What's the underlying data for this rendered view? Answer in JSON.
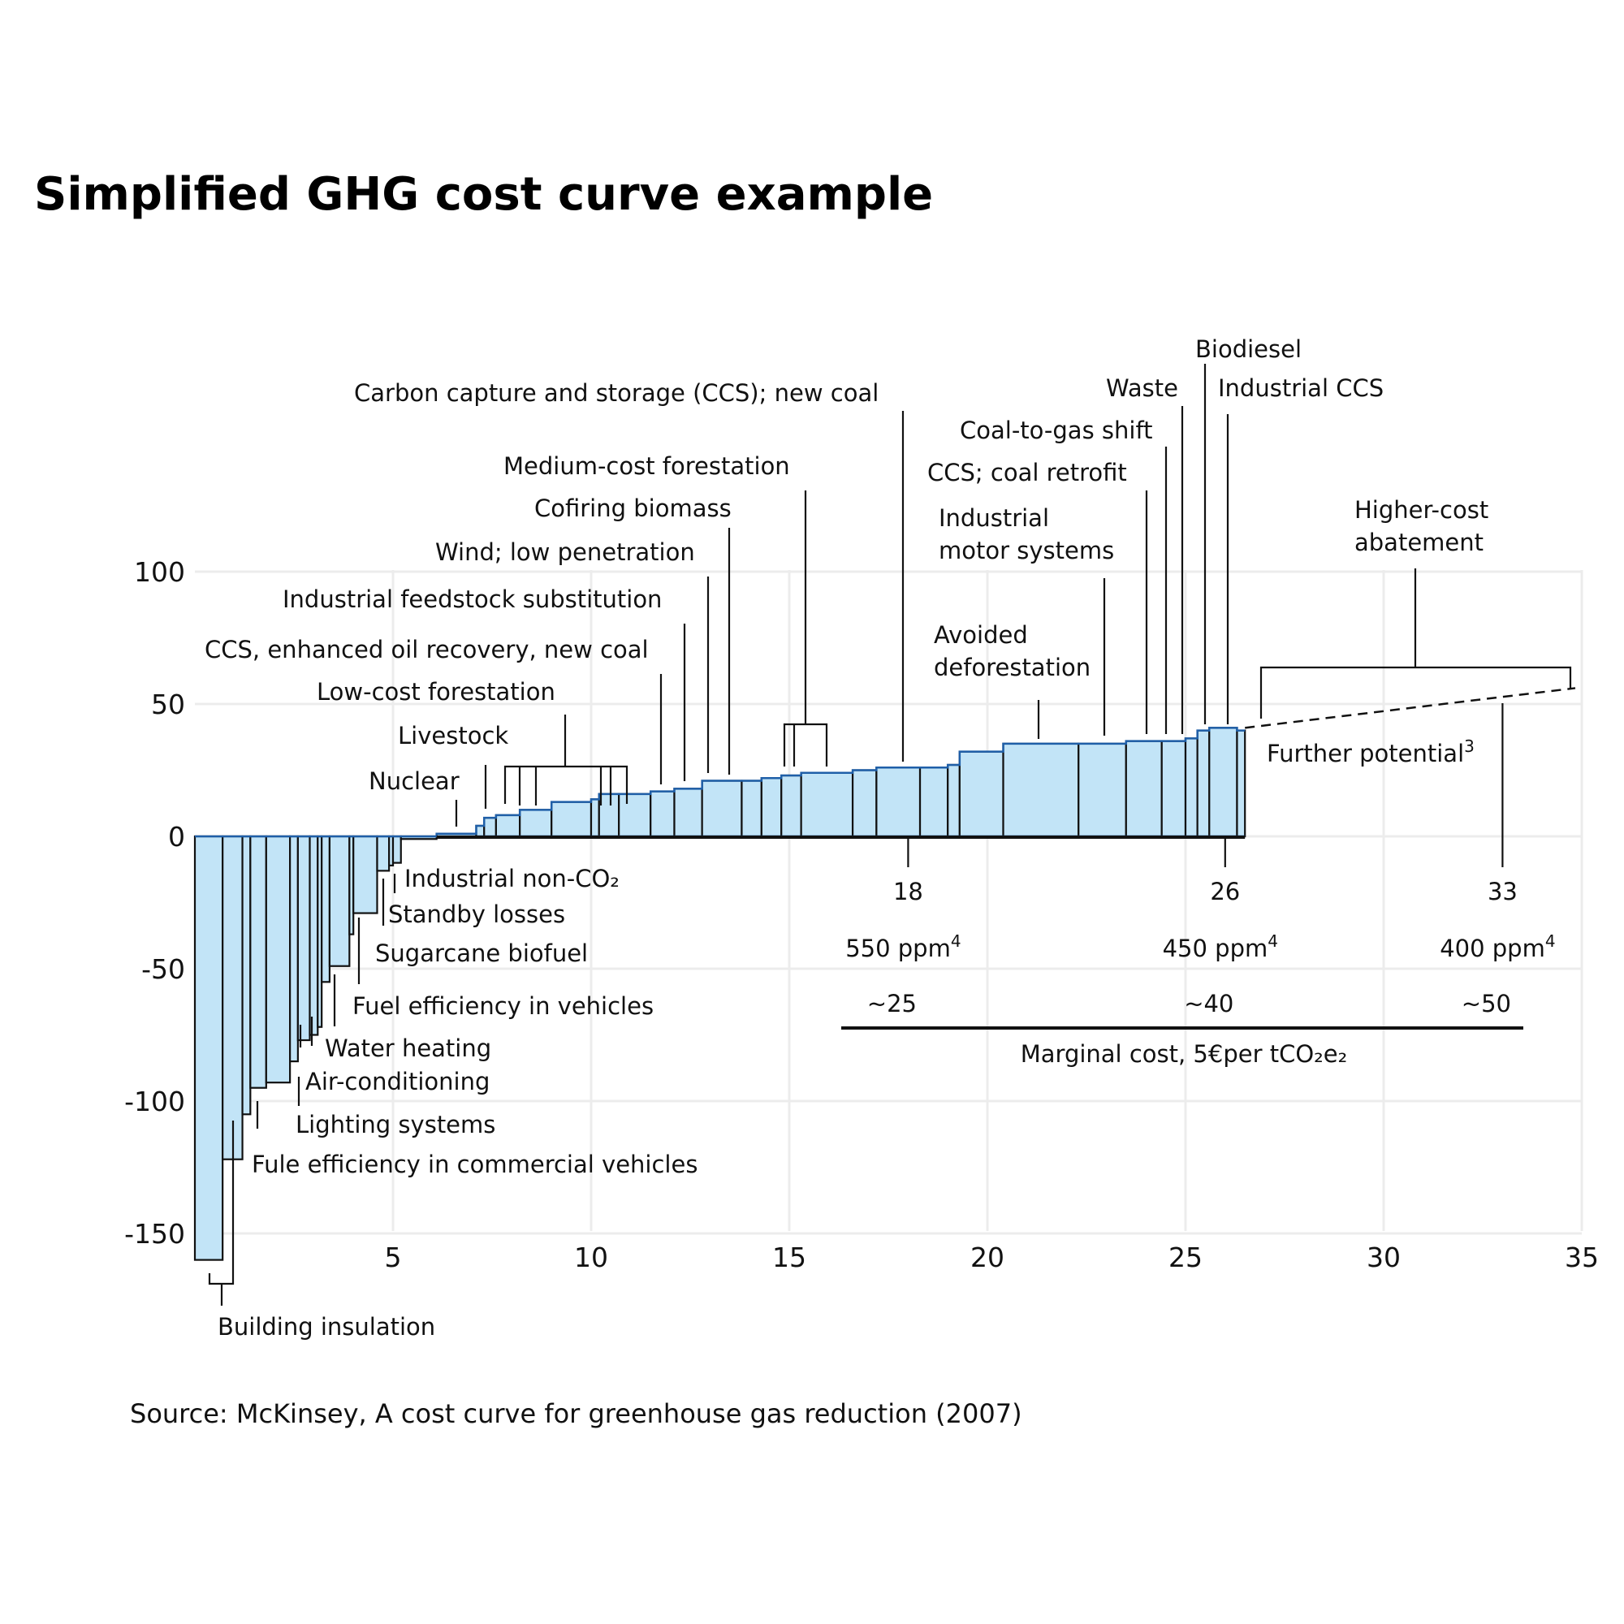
{
  "page": {
    "title": "Simplified GHG cost curve example",
    "source": "Source: McKinsey, A cost curve for greenhouse gas reduction (2007)"
  },
  "chart_data": {
    "type": "bar",
    "title": "Simplified GHG cost curve example",
    "xlim": [
      0,
      35
    ],
    "ylim": [
      -165,
      110
    ],
    "x_ticks": [
      5,
      10,
      15,
      20,
      25,
      30,
      35
    ],
    "y_ticks": [
      100,
      50,
      0,
      -50,
      -100,
      -150
    ],
    "grid": true,
    "bars": [
      {
        "x0": 0.0,
        "x1": 0.7,
        "value": -160
      },
      {
        "x0": 0.7,
        "x1": 1.2,
        "value": -122
      },
      {
        "x0": 1.2,
        "x1": 1.4,
        "value": -105
      },
      {
        "x0": 1.4,
        "x1": 1.8,
        "value": -95
      },
      {
        "x0": 1.8,
        "x1": 2.4,
        "value": -93
      },
      {
        "x0": 2.4,
        "x1": 2.6,
        "value": -85
      },
      {
        "x0": 2.6,
        "x1": 2.9,
        "value": -77
      },
      {
        "x0": 2.9,
        "x1": 3.1,
        "value": -75
      },
      {
        "x0": 3.1,
        "x1": 3.2,
        "value": -72
      },
      {
        "x0": 3.2,
        "x1": 3.4,
        "value": -55
      },
      {
        "x0": 3.4,
        "x1": 3.9,
        "value": -49
      },
      {
        "x0": 3.9,
        "x1": 4.0,
        "value": -37
      },
      {
        "x0": 4.0,
        "x1": 4.6,
        "value": -29
      },
      {
        "x0": 4.6,
        "x1": 4.9,
        "value": -13
      },
      {
        "x0": 4.9,
        "x1": 5.0,
        "value": -11
      },
      {
        "x0": 5.0,
        "x1": 5.2,
        "value": -10
      },
      {
        "x0": 5.2,
        "x1": 6.1,
        "value": -1
      },
      {
        "x0": 6.1,
        "x1": 7.1,
        "value": 1
      },
      {
        "x0": 7.1,
        "x1": 7.3,
        "value": 4
      },
      {
        "x0": 7.3,
        "x1": 7.6,
        "value": 7
      },
      {
        "x0": 7.6,
        "x1": 8.2,
        "value": 8
      },
      {
        "x0": 8.2,
        "x1": 9.0,
        "value": 10
      },
      {
        "x0": 9.0,
        "x1": 10.0,
        "value": 13
      },
      {
        "x0": 10.0,
        "x1": 10.2,
        "value": 14
      },
      {
        "x0": 10.2,
        "x1": 10.7,
        "value": 16
      },
      {
        "x0": 10.7,
        "x1": 11.5,
        "value": 16
      },
      {
        "x0": 11.5,
        "x1": 12.1,
        "value": 17
      },
      {
        "x0": 12.1,
        "x1": 12.8,
        "value": 18
      },
      {
        "x0": 12.8,
        "x1": 13.8,
        "value": 21
      },
      {
        "x0": 13.8,
        "x1": 14.3,
        "value": 21
      },
      {
        "x0": 14.3,
        "x1": 14.8,
        "value": 22
      },
      {
        "x0": 14.8,
        "x1": 15.3,
        "value": 23
      },
      {
        "x0": 15.3,
        "x1": 16.6,
        "value": 24
      },
      {
        "x0": 16.6,
        "x1": 17.2,
        "value": 25
      },
      {
        "x0": 17.2,
        "x1": 18.3,
        "value": 26
      },
      {
        "x0": 18.3,
        "x1": 19.0,
        "value": 26
      },
      {
        "x0": 19.0,
        "x1": 19.3,
        "value": 27
      },
      {
        "x0": 19.3,
        "x1": 20.4,
        "value": 32
      },
      {
        "x0": 20.4,
        "x1": 22.3,
        "value": 35
      },
      {
        "x0": 22.3,
        "x1": 23.5,
        "value": 35
      },
      {
        "x0": 23.5,
        "x1": 24.4,
        "value": 36
      },
      {
        "x0": 24.4,
        "x1": 25.0,
        "value": 36
      },
      {
        "x0": 25.0,
        "x1": 25.3,
        "value": 37
      },
      {
        "x0": 25.3,
        "x1": 25.6,
        "value": 40
      },
      {
        "x0": 25.6,
        "x1": 26.3,
        "value": 41
      },
      {
        "x0": 26.3,
        "x1": 26.5,
        "value": 40
      }
    ],
    "further_potential": {
      "x": [
        26.5,
        35
      ],
      "y": [
        41,
        56
      ],
      "label": "Further potential",
      "sup": "3"
    },
    "labels": {
      "building_insulation": "Building insulation",
      "fuel_commercial": "Fule efficiency in commercial vehicles",
      "lighting": "Lighting systems",
      "air_conditioning": "Air-conditioning",
      "water_heating": "Water heating",
      "fuel_vehicles": "Fuel efficiency in vehicles",
      "sugarcane": "Sugarcane biofuel",
      "standby": "Standby losses",
      "industrial_nonco2": "Industrial non-CO₂",
      "nuclear": "Nuclear",
      "livestock": "Livestock",
      "low_cost_forestation": "Low-cost forestation",
      "ccs_eor": "CCS, enhanced oil recovery, new coal",
      "industrial_feedstock": "Industrial feedstock substitution",
      "wind": "Wind; low penetration",
      "cofiring": "Cofiring biomass",
      "medium_forestation": "Medium-cost forestation",
      "ccs_new_coal": "Carbon capture and storage (CCS); new coal",
      "avoided_def_1": "Avoided",
      "avoided_def_2": "deforestation",
      "ind_motor_1": "Industrial",
      "ind_motor_2": "motor systems",
      "ccs_retrofit": "CCS; coal retrofit",
      "coal_to_gas": "Coal-to-gas shift",
      "waste": "Waste",
      "biodiesel": "Biodiesel",
      "industrial_ccs": "Industrial CCS",
      "higher_cost_1": "Higher-cost",
      "higher_cost_2": "abatement"
    },
    "scenarios": [
      {
        "x": 18,
        "label": "18",
        "ppm": "550 ppm",
        "ppm_sup": "4",
        "cost": "~25"
      },
      {
        "x": 26,
        "label": "26",
        "ppm": "450 ppm",
        "ppm_sup": "4",
        "cost": "~40"
      },
      {
        "x": 33,
        "label": "33",
        "ppm": "400 ppm",
        "ppm_sup": "4",
        "cost": "~50"
      }
    ],
    "marginal_cost_label": "Marginal cost, 5€per tCO₂e₂"
  }
}
